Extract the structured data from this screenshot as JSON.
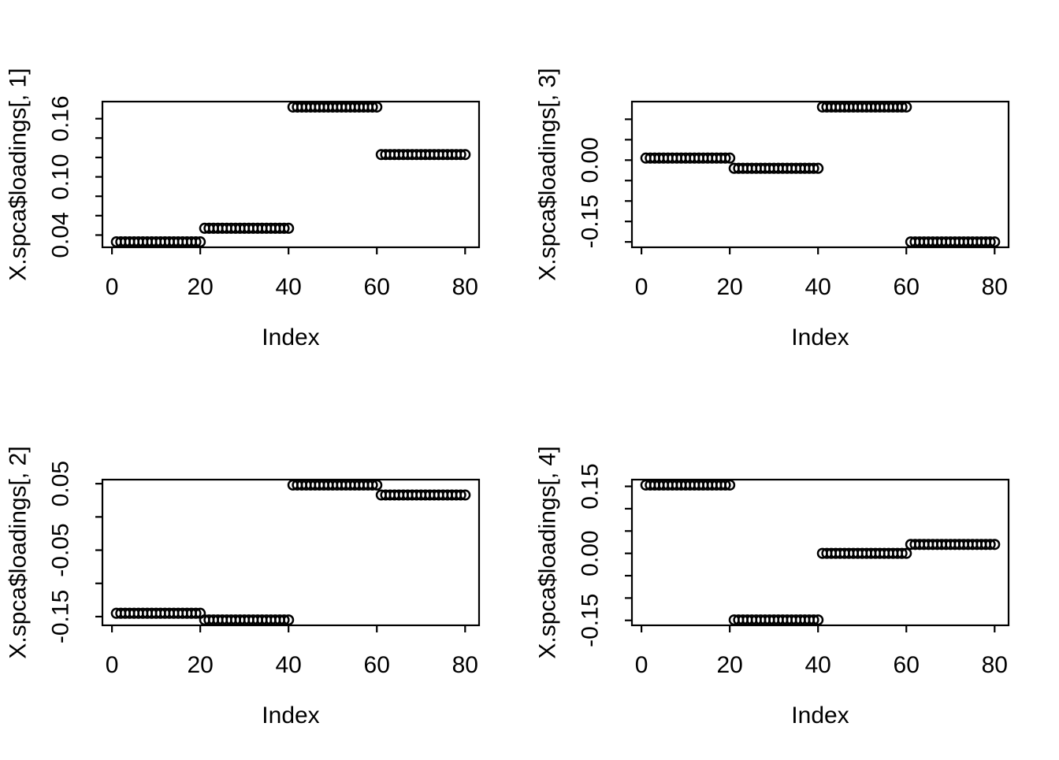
{
  "figure": {
    "background": "#ffffff",
    "foreground": "#000000",
    "layout": "2x2-grid",
    "marker": "open-circle"
  },
  "chart_data": [
    {
      "type": "scatter",
      "position": "top-left",
      "ylabel": "X.spca$loadings[, 1]",
      "xlabel": "Index",
      "xlim": [
        -2.16,
        83.16
      ],
      "ylim": [
        0.0274,
        0.1776
      ],
      "x_ticks": [
        0,
        20,
        40,
        60,
        80
      ],
      "x_tick_labels": [
        "0",
        "20",
        "40",
        "60",
        "80"
      ],
      "y_ticks": [
        0.04,
        0.06,
        0.08,
        0.1,
        0.12,
        0.14,
        0.16
      ],
      "y_tick_labels": [
        "0.04",
        "",
        "",
        "0.10",
        "",
        "",
        "0.16"
      ],
      "grid": false,
      "groups": [
        {
          "index_start": 1,
          "index_end": 20,
          "value": 0.033
        },
        {
          "index_start": 21,
          "index_end": 40,
          "value": 0.047
        },
        {
          "index_start": 41,
          "index_end": 60,
          "value": 0.172
        },
        {
          "index_start": 61,
          "index_end": 80,
          "value": 0.123
        }
      ]
    },
    {
      "type": "scatter",
      "position": "top-right",
      "ylabel": "X.spca$loadings[, 3]",
      "xlabel": "Index",
      "xlim": [
        -2.16,
        83.16
      ],
      "ylim": [
        -0.2132,
        0.1432
      ],
      "x_ticks": [
        0,
        20,
        40,
        60,
        80
      ],
      "x_tick_labels": [
        "0",
        "20",
        "40",
        "60",
        "80"
      ],
      "y_ticks": [
        -0.2,
        -0.15,
        -0.1,
        -0.05,
        0.0,
        0.05,
        0.1
      ],
      "y_tick_labels": [
        "",
        "-0.15",
        "",
        "",
        "0.00",
        "",
        ""
      ],
      "grid": false,
      "groups": [
        {
          "index_start": 1,
          "index_end": 20,
          "value": 0.005
        },
        {
          "index_start": 21,
          "index_end": 40,
          "value": -0.02
        },
        {
          "index_start": 41,
          "index_end": 60,
          "value": 0.13
        },
        {
          "index_start": 61,
          "index_end": 80,
          "value": -0.2
        }
      ]
    },
    {
      "type": "scatter",
      "position": "bottom-left",
      "ylabel": "X.spca$loadings[, 2]",
      "xlabel": "Index",
      "xlim": [
        -2.16,
        83.16
      ],
      "ylim": [
        -0.1631,
        0.0561
      ],
      "x_ticks": [
        0,
        20,
        40,
        60,
        80
      ],
      "x_tick_labels": [
        "0",
        "20",
        "40",
        "60",
        "80"
      ],
      "y_ticks": [
        -0.15,
        -0.1,
        -0.05,
        0.0,
        0.05
      ],
      "y_tick_labels": [
        "-0.15",
        "",
        "-0.05",
        "",
        "0.05"
      ],
      "grid": false,
      "groups": [
        {
          "index_start": 1,
          "index_end": 20,
          "value": -0.145
        },
        {
          "index_start": 21,
          "index_end": 40,
          "value": -0.155
        },
        {
          "index_start": 41,
          "index_end": 60,
          "value": 0.048
        },
        {
          "index_start": 61,
          "index_end": 80,
          "value": 0.033
        }
      ]
    },
    {
      "type": "scatter",
      "position": "bottom-right",
      "ylabel": "X.spca$loadings[, 4]",
      "xlabel": "Index",
      "xlim": [
        -2.16,
        83.16
      ],
      "ylim": [
        -0.1611,
        0.1651
      ],
      "x_ticks": [
        0,
        20,
        40,
        60,
        80
      ],
      "x_tick_labels": [
        "0",
        "20",
        "40",
        "60",
        "80"
      ],
      "y_ticks": [
        -0.15,
        -0.1,
        -0.05,
        0.0,
        0.05,
        0.1,
        0.15
      ],
      "y_tick_labels": [
        "-0.15",
        "",
        "",
        "0.00",
        "",
        "",
        "0.15"
      ],
      "grid": false,
      "groups": [
        {
          "index_start": 1,
          "index_end": 20,
          "value": 0.153
        },
        {
          "index_start": 21,
          "index_end": 40,
          "value": -0.149
        },
        {
          "index_start": 41,
          "index_end": 60,
          "value": 0.0
        },
        {
          "index_start": 61,
          "index_end": 80,
          "value": 0.02
        }
      ]
    }
  ]
}
